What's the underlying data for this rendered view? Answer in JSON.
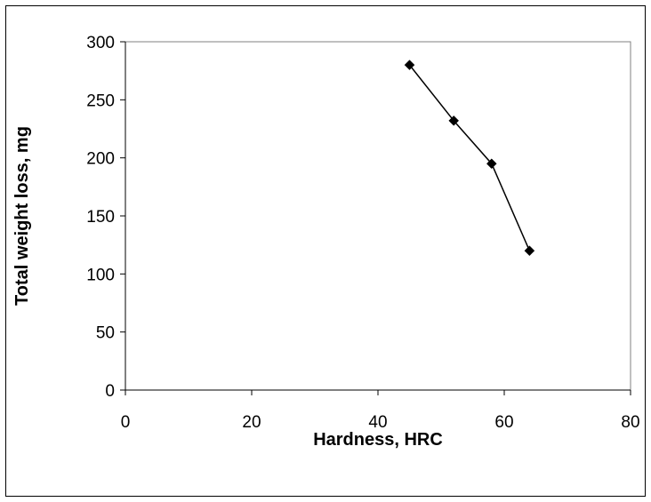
{
  "chart_data": {
    "type": "scatter",
    "title": "",
    "xlabel": "Hardness, HRC",
    "ylabel": "Total weight loss, mg",
    "xlim": [
      0,
      80
    ],
    "ylim": [
      0,
      300
    ],
    "x_ticks": [
      0,
      20,
      40,
      60,
      80
    ],
    "y_ticks": [
      0,
      50,
      100,
      150,
      200,
      250,
      300
    ],
    "grid": false,
    "legend": "none",
    "marker": "diamond",
    "line_style": "solid",
    "series": [
      {
        "x": [
          45,
          52,
          58,
          64
        ],
        "y": [
          280,
          232,
          195,
          120
        ],
        "color": "#000000"
      }
    ]
  }
}
